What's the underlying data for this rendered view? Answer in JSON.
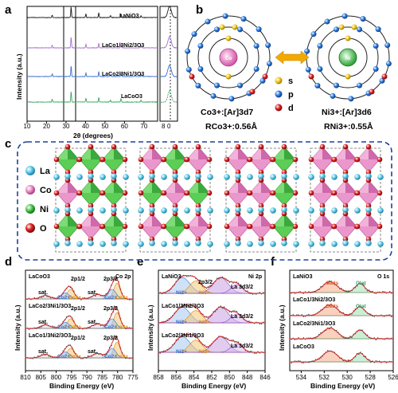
{
  "panels": {
    "a": "a",
    "b": "b",
    "c": "c",
    "d": "d",
    "e": "e",
    "f": "f"
  },
  "panel_a": {
    "ylabel": "Intensity (a.u.)",
    "xlabel": "2θ (degrees)",
    "xticks": [
      "10",
      "20",
      "30",
      "40",
      "50",
      "60",
      "70",
      "80"
    ],
    "xticks_right": [
      "8",
      "0"
    ],
    "series_labels": [
      "LaNiO3",
      "LaCo1/3Ni2/3O3",
      "LaCo2/3Ni1/3O3",
      "LaCoO3"
    ],
    "colors": [
      "#1a1a1a",
      "#a86ccf",
      "#3a6fd0",
      "#3aa860"
    ]
  },
  "panel_b": {
    "left_atom": "Co",
    "right_atom": "Ni",
    "left_config": "Co3+:[Ar]3d7",
    "right_config": "Ni3+:[Ar]3d6",
    "left_radius": "RCo3+:0.56Å",
    "right_radius": "RNi3+:0.55Å",
    "legend": [
      "s",
      "p",
      "d"
    ],
    "legend_colors": [
      "#f2c200",
      "#1f6fd1",
      "#d21b1b"
    ]
  },
  "panel_c": {
    "legend": [
      "La",
      "Co",
      "Ni",
      "O"
    ],
    "legend_colors": [
      "#5ac8e6",
      "#e889c5",
      "#49c24b",
      "#d6141b"
    ]
  },
  "panel_d": {
    "spectra_labels": [
      "LaCoO3",
      "LaCo2/3Ni1/3O3",
      "LaCo1/3Ni2/3O3"
    ],
    "corner_label": "Co 2p",
    "peak_labels": [
      "2p1/2",
      "2p3/2",
      "sat.",
      "sat.",
      "Co2+",
      "Co3+"
    ],
    "xticks": [
      "810",
      "805",
      "800",
      "795",
      "790",
      "785",
      "780",
      "775"
    ],
    "xlabel": "Binding Energy (eV)",
    "ylabel": "Intensity (a.u.)"
  },
  "panel_e": {
    "spectra_labels": [
      "LaNiO3",
      "LaCo1/3Ni2/3O3",
      "LaCo2/3Ni1/3O3"
    ],
    "corner_label": "Ni 2p",
    "peak_labels": [
      "2p3/2",
      "La 3d3/2",
      "Ni2+",
      "Ni3+"
    ],
    "xticks": [
      "858",
      "856",
      "854",
      "852",
      "850",
      "848",
      "846"
    ],
    "xlabel": "Binding Energy (eV)",
    "ylabel": "Intensity (a.u.)"
  },
  "panel_f": {
    "spectra_labels": [
      "LaNiO3",
      "LaCo1/3Ni2/3O3",
      "LaCo2/3Ni1/3O3",
      "LaCoO3"
    ],
    "corner_label": "O 1s",
    "peak_labels": [
      "Oads",
      "Olat"
    ],
    "xticks": [
      "534",
      "532",
      "530",
      "528",
      "526"
    ],
    "xlabel": "Binding Energy (eV)",
    "ylabel": "Intensity (a.u.)"
  }
}
